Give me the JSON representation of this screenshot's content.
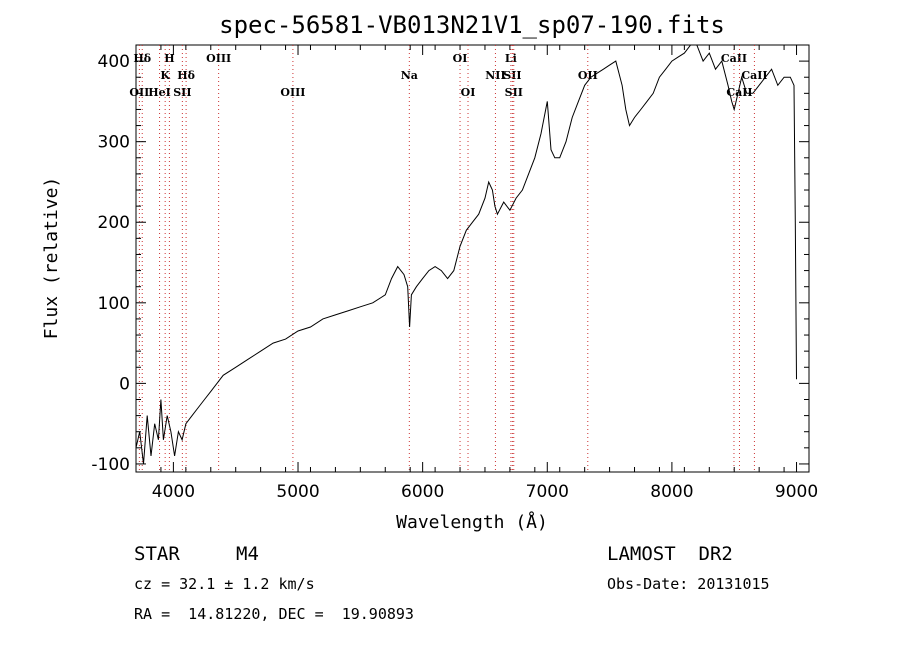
{
  "chart_data": {
    "type": "line",
    "title": "spec-56581-VB013N21V1_sp07-190.fits",
    "xlabel": "Wavelength (Å)",
    "ylabel": "Flux (relative)",
    "xlim": [
      3700,
      9100
    ],
    "ylim": [
      -110,
      420
    ],
    "x_ticks": [
      4000,
      5000,
      6000,
      7000,
      8000,
      9000
    ],
    "y_ticks": [
      -100,
      0,
      100,
      200,
      300,
      400
    ],
    "grid": false,
    "series": [
      {
        "x": [
          3700,
          3730,
          3760,
          3790,
          3820,
          3850,
          3880,
          3900,
          3920,
          3950,
          3980,
          4010,
          4040,
          4070,
          4100,
          4150,
          4200,
          4250,
          4300,
          4400,
          4500,
          4600,
          4700,
          4800,
          4900,
          5000,
          5100,
          5200,
          5300,
          5400,
          5500,
          5600,
          5700,
          5750,
          5800,
          5850,
          5880,
          5895,
          5910,
          5950,
          6000,
          6050,
          6100,
          6150,
          6200,
          6250,
          6300,
          6350,
          6400,
          6450,
          6500,
          6530,
          6560,
          6580,
          6600,
          6650,
          6700,
          6750,
          6800,
          6850,
          6900,
          6950,
          7000,
          7030,
          7060,
          7100,
          7150,
          7200,
          7250,
          7300,
          7350,
          7400,
          7450,
          7500,
          7550,
          7600,
          7630,
          7660,
          7700,
          7750,
          7800,
          7850,
          7900,
          7950,
          8000,
          8050,
          8100,
          8150,
          8200,
          8250,
          8300,
          8350,
          8400,
          8450,
          8480,
          8500,
          8530,
          8560,
          8600,
          8650,
          8700,
          8750,
          8800,
          8850,
          8900,
          8950,
          8980,
          8990,
          9000
        ],
        "y": [
          -80,
          -60,
          -100,
          -40,
          -90,
          -50,
          -70,
          -20,
          -70,
          -40,
          -60,
          -90,
          -60,
          -70,
          -50,
          -40,
          -30,
          -20,
          -10,
          10,
          20,
          30,
          40,
          50,
          55,
          65,
          70,
          80,
          85,
          90,
          95,
          100,
          110,
          130,
          145,
          135,
          120,
          70,
          110,
          120,
          130,
          140,
          145,
          140,
          130,
          140,
          170,
          190,
          200,
          210,
          230,
          250,
          240,
          220,
          210,
          225,
          215,
          230,
          240,
          260,
          280,
          310,
          350,
          290,
          280,
          280,
          300,
          330,
          350,
          370,
          380,
          385,
          390,
          395,
          400,
          370,
          340,
          320,
          330,
          340,
          350,
          360,
          380,
          390,
          400,
          405,
          410,
          420,
          420,
          400,
          410,
          390,
          400,
          370,
          350,
          340,
          360,
          380,
          360,
          360,
          370,
          380,
          390,
          370,
          380,
          380,
          370,
          200,
          5
        ]
      }
    ],
    "spectral_lines": [
      {
        "label": "Hδ",
        "x": 3750,
        "row": 1
      },
      {
        "label": "H",
        "x": 3968,
        "row": 1
      },
      {
        "label": "OIII",
        "x": 4363,
        "row": 1
      },
      {
        "label": "K",
        "x": 3934,
        "row": 2
      },
      {
        "label": "Hδ",
        "x": 4102,
        "row": 2
      },
      {
        "label": "OII",
        "x": 3727,
        "row": 3
      },
      {
        "label": "HeI",
        "x": 3889,
        "row": 3
      },
      {
        "label": "SII",
        "x": 4072,
        "row": 3
      },
      {
        "label": "OIII",
        "x": 4959,
        "row": 3
      },
      {
        "label": "OI",
        "x": 6300,
        "row": 1
      },
      {
        "label": "Li",
        "x": 6708,
        "row": 1
      },
      {
        "label": "Na",
        "x": 5893,
        "row": 2
      },
      {
        "label": "NII",
        "x": 6584,
        "row": 2
      },
      {
        "label": "SII",
        "x": 6720,
        "row": 2
      },
      {
        "label": "OI",
        "x": 6364,
        "row": 3
      },
      {
        "label": "SII",
        "x": 6731,
        "row": 3
      },
      {
        "label": "OII",
        "x": 7325,
        "row": 2
      },
      {
        "label": "CaII",
        "x": 8498,
        "row": 1
      },
      {
        "label": "CaII",
        "x": 8542,
        "row": 3
      },
      {
        "label": "CaII",
        "x": 8662,
        "row": 2
      }
    ]
  },
  "footer": {
    "object_class": "STAR",
    "subclass": "M4",
    "survey": "LAMOST  DR2",
    "redshift": "cz = 32.1 ± 1.2 km/s",
    "obs_date": "Obs-Date: 20131015",
    "coords": "RA =  14.81220, DEC =  19.90893"
  }
}
